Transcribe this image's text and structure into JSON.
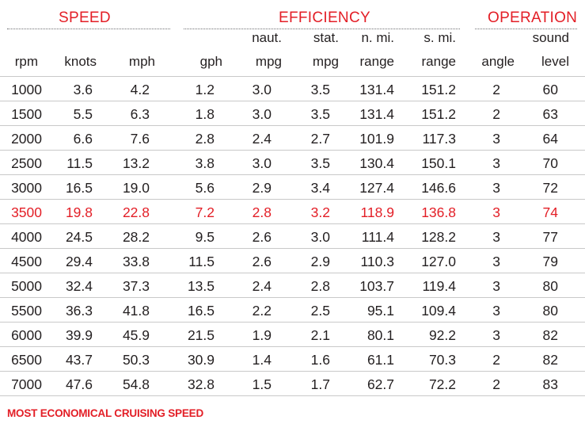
{
  "sections": {
    "speed": "SPEED",
    "efficiency": "EFFICIENCY",
    "operation": "OPERATION"
  },
  "headers": {
    "top": [
      "",
      "",
      "",
      "",
      "naut.",
      "stat.",
      "n. mi.",
      "s. mi.",
      "",
      "sound"
    ],
    "bottom": [
      "rpm",
      "knots",
      "mph",
      "gph",
      "mpg",
      "mpg",
      "range",
      "range",
      "angle",
      "level"
    ]
  },
  "rows": [
    [
      "1000",
      "3.6",
      "4.2",
      "1.2",
      "3.0",
      "3.5",
      "131.4",
      "151.2",
      "2",
      "60"
    ],
    [
      "1500",
      "5.5",
      "6.3",
      "1.8",
      "3.0",
      "3.5",
      "131.4",
      "151.2",
      "2",
      "63"
    ],
    [
      "2000",
      "6.6",
      "7.6",
      "2.8",
      "2.4",
      "2.7",
      "101.9",
      "117.3",
      "3",
      "64"
    ],
    [
      "2500",
      "11.5",
      "13.2",
      "3.8",
      "3.0",
      "3.5",
      "130.4",
      "150.1",
      "3",
      "70"
    ],
    [
      "3000",
      "16.5",
      "19.0",
      "5.6",
      "2.9",
      "3.4",
      "127.4",
      "146.6",
      "3",
      "72"
    ],
    [
      "3500",
      "19.8",
      "22.8",
      "7.2",
      "2.8",
      "3.2",
      "118.9",
      "136.8",
      "3",
      "74"
    ],
    [
      "4000",
      "24.5",
      "28.2",
      "9.5",
      "2.6",
      "3.0",
      "111.4",
      "128.2",
      "3",
      "77"
    ],
    [
      "4500",
      "29.4",
      "33.8",
      "11.5",
      "2.6",
      "2.9",
      "110.3",
      "127.0",
      "3",
      "79"
    ],
    [
      "5000",
      "32.4",
      "37.3",
      "13.5",
      "2.4",
      "2.8",
      "103.7",
      "119.4",
      "3",
      "80"
    ],
    [
      "5500",
      "36.3",
      "41.8",
      "16.5",
      "2.2",
      "2.5",
      "95.1",
      "109.4",
      "3",
      "80"
    ],
    [
      "6000",
      "39.9",
      "45.9",
      "21.5",
      "1.9",
      "2.1",
      "80.1",
      "92.2",
      "3",
      "82"
    ],
    [
      "6500",
      "43.7",
      "50.3",
      "30.9",
      "1.4",
      "1.6",
      "61.1",
      "70.3",
      "2",
      "82"
    ],
    [
      "7000",
      "47.6",
      "54.8",
      "32.8",
      "1.5",
      "1.7",
      "62.7",
      "72.2",
      "2",
      "83"
    ]
  ],
  "highlight_row": 5,
  "footnote": "MOST ECONOMICAL CRUISING SPEED",
  "colors": {
    "accent": "#e31e26",
    "text": "#231f20",
    "row_separator": "#c9c9c9",
    "dotted_rule": "#6d6e71"
  }
}
